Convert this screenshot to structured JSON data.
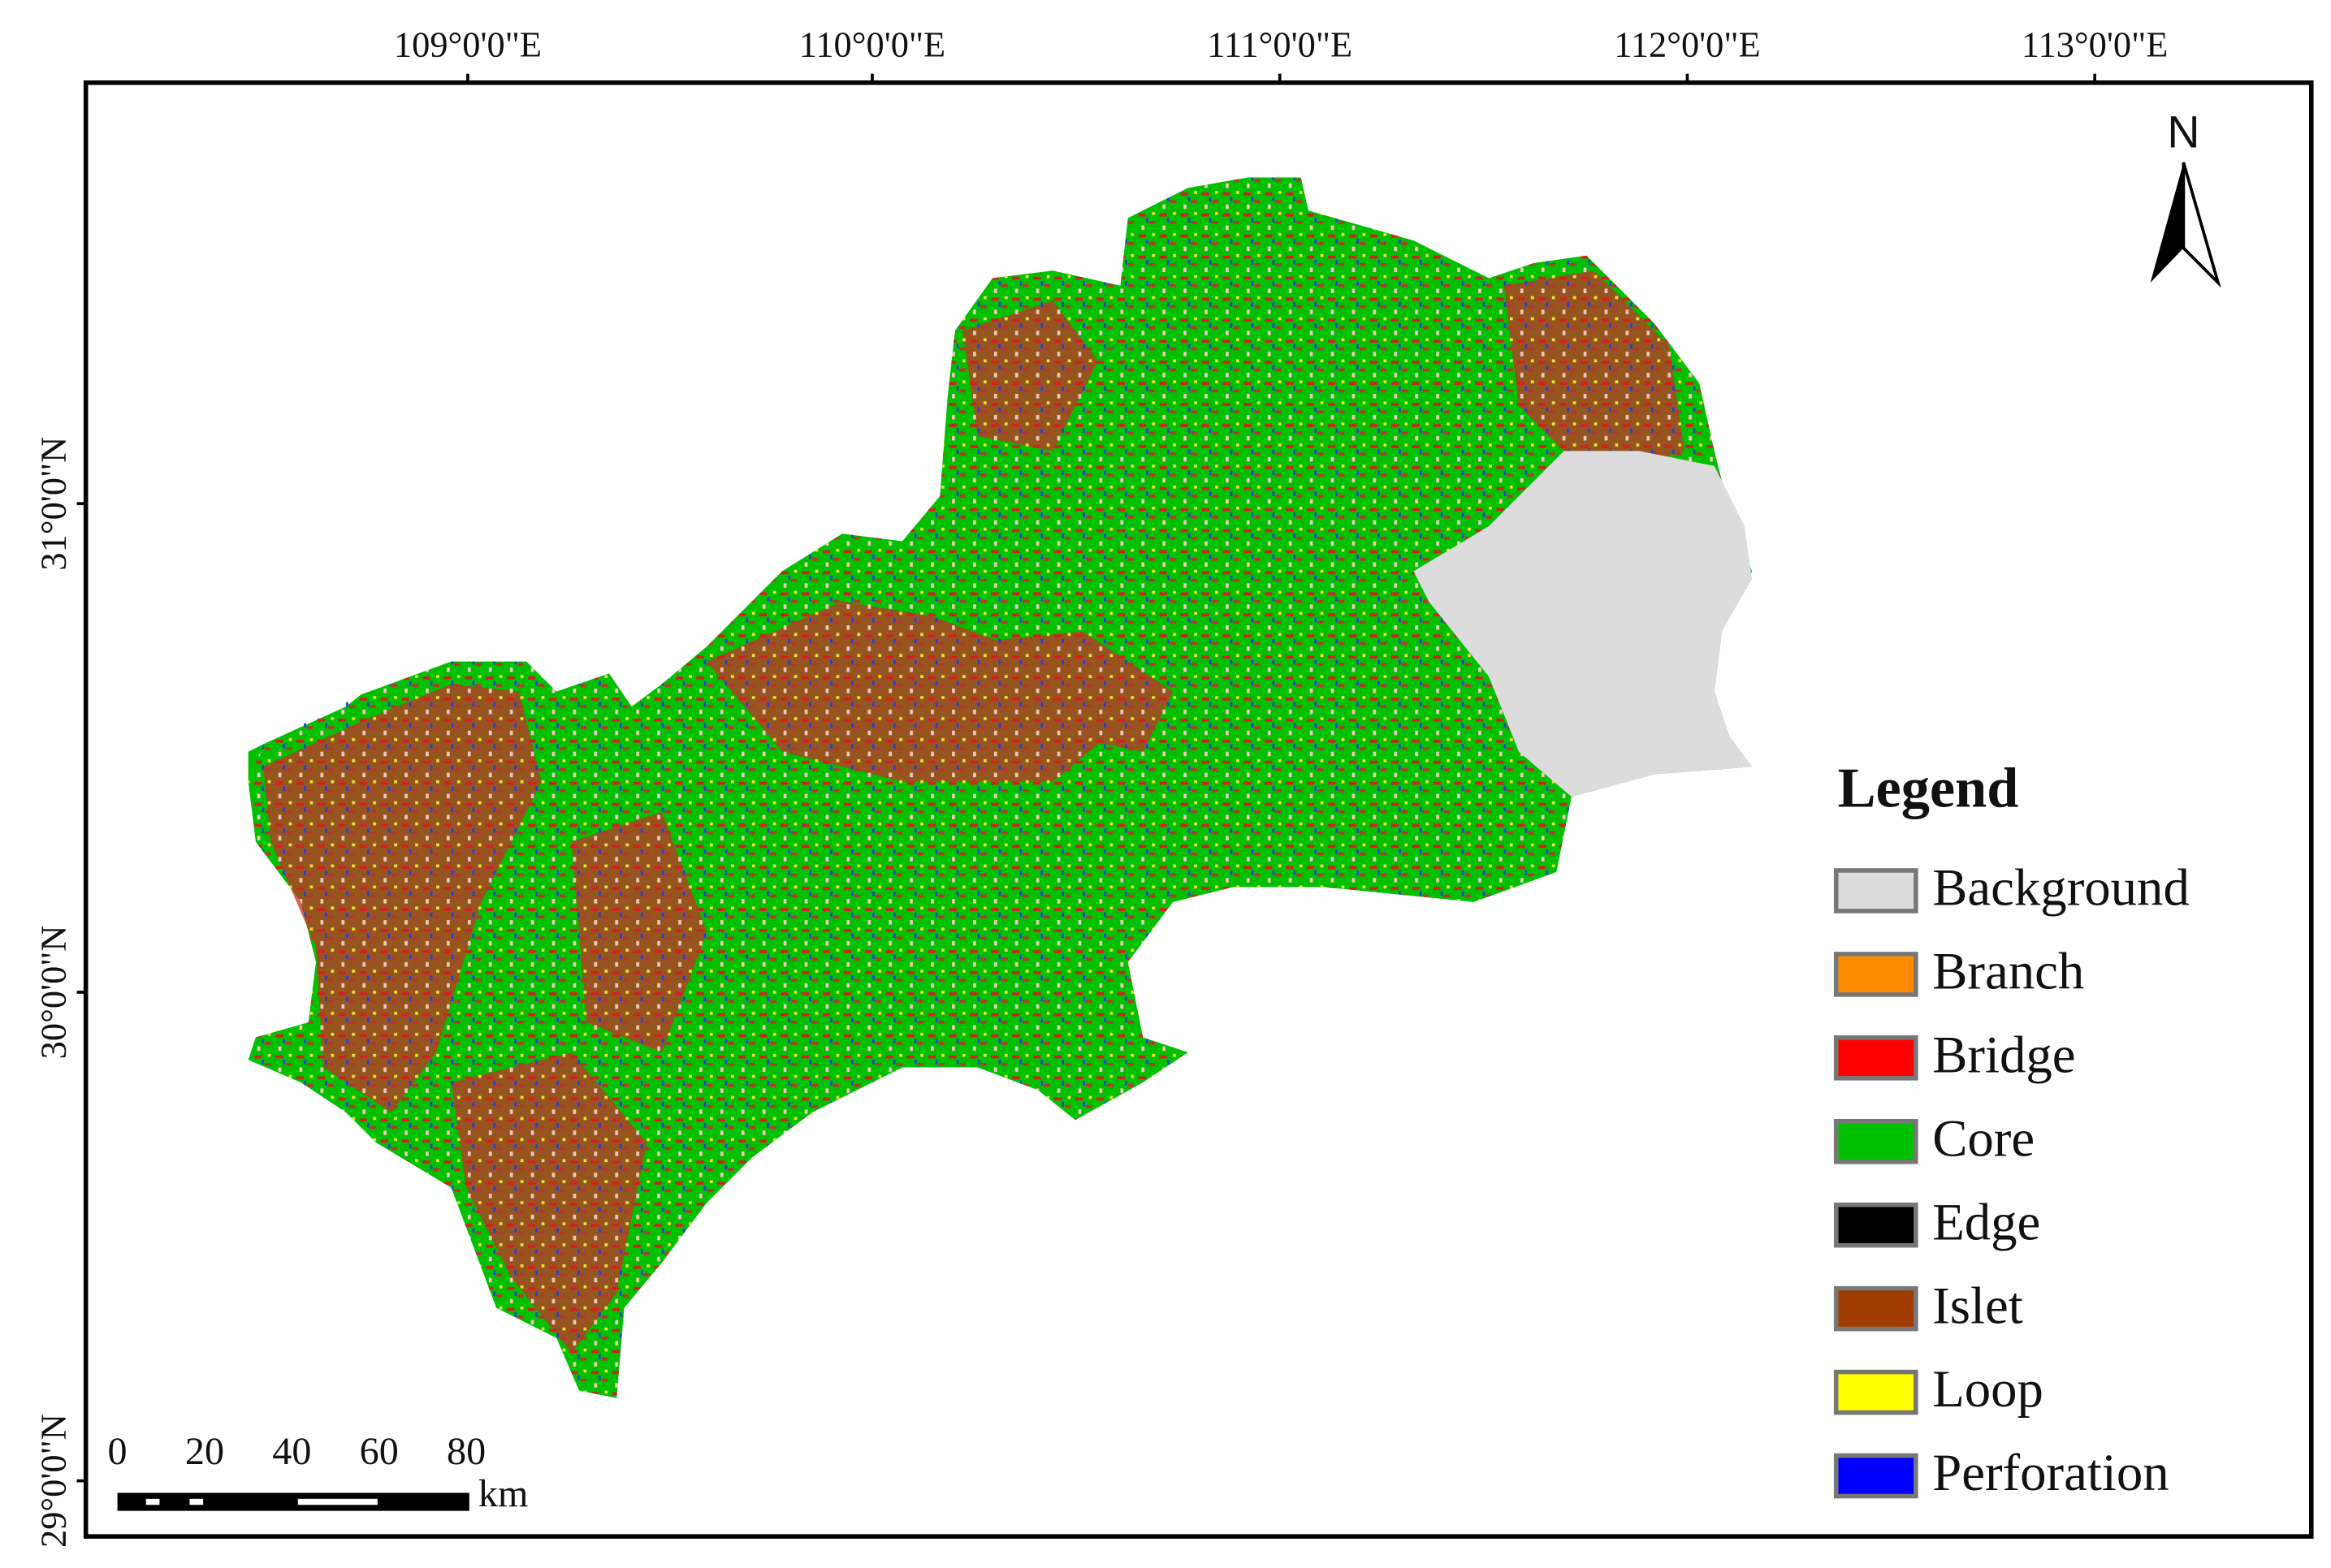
{
  "map": {
    "longitude_labels": [
      "109°0'0\"E",
      "110°0'0\"E",
      "111°0'0\"E",
      "112°0'0\"E",
      "113°0'0\"E"
    ],
    "latitude_labels": [
      "31°0'0\"N",
      "30°0'0\"N",
      "29°0'0\"N"
    ],
    "north_label": "N",
    "legend": {
      "title": "Legend",
      "items": [
        {
          "label": "Background",
          "color": "#dcdcdc"
        },
        {
          "label": "Branch",
          "color": "#ff8c00"
        },
        {
          "label": "Bridge",
          "color": "#ff0000"
        },
        {
          "label": "Core",
          "color": "#00c000"
        },
        {
          "label": "Edge",
          "color": "#000000"
        },
        {
          "label": "Islet",
          "color": "#a03c00"
        },
        {
          "label": "Loop",
          "color": "#ffff00"
        },
        {
          "label": "Perforation",
          "color": "#0000ff"
        }
      ]
    },
    "scale_bar": {
      "labels": [
        "0",
        "20",
        "40",
        "60",
        "80"
      ],
      "unit": "km"
    }
  }
}
